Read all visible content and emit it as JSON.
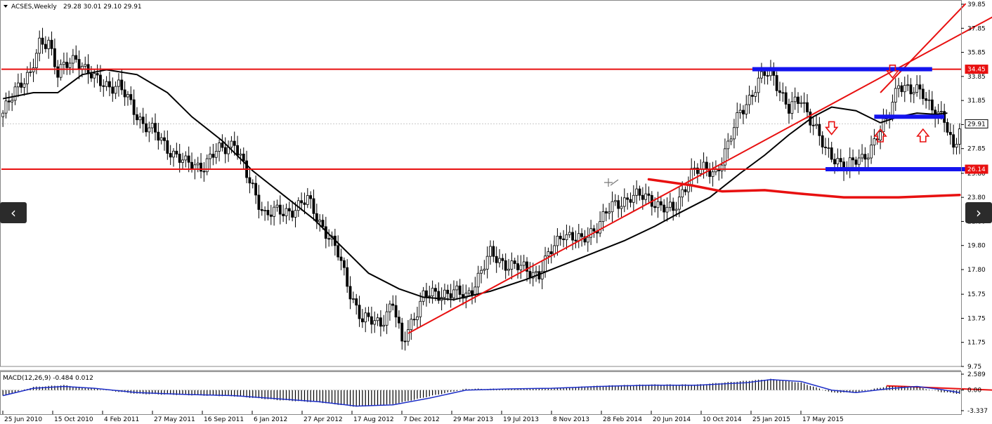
{
  "header": {
    "symbol": "ACSES,Weekly",
    "ohlc": "29.28 30.01 29.10 29.91",
    "arrow_icon": "triangle-down-icon"
  },
  "macd_header": "MACD(12,26,9) -0.484 0.012",
  "colors": {
    "candle": "#000000",
    "ma": "#000000",
    "red_line": "#e81010",
    "blue_zone": "#1414ee",
    "price_label_bg": "#e81010",
    "price_label_text": "#ffffff",
    "current_label_bg": "#ffffff",
    "grid": "#c9c9c9",
    "macd_signal": "#1e2fc8"
  },
  "nav": {
    "prev_icon": "chevron-left-icon",
    "next_icon": "chevron-right-icon",
    "prev": "‹",
    "next": "›"
  },
  "chart_data": {
    "type": "candlestick",
    "symbol": "ACSES",
    "timeframe": "Weekly",
    "main_ylim": [
      9.75,
      39.85
    ],
    "y_ticks": [
      "39.85",
      "37.85",
      "35.85",
      "33.85",
      "31.85",
      "29.85",
      "27.85",
      "25.80",
      "23.80",
      "21.80",
      "19.80",
      "17.80",
      "15.75",
      "13.75",
      "11.75",
      "9.75"
    ],
    "x_ticks": [
      "25 Jun 2010",
      "15 Oct 2010",
      "4 Feb 2011",
      "27 May 2011",
      "16 Sep 2011",
      "6 Jan 2012",
      "27 Apr 2012",
      "17 Aug 2012",
      "7 Dec 2012",
      "29 Mar 2013",
      "19 Jul 2013",
      "8 Nov 2013",
      "28 Feb 2014",
      "20 Jun 2014",
      "10 Oct 2014",
      "25 Jan 2015",
      "17 May 2015"
    ],
    "price_labels": [
      {
        "value": 34.45,
        "label": "34.45",
        "kind": "level"
      },
      {
        "value": 29.91,
        "label": "29.91",
        "kind": "current"
      },
      {
        "value": 26.14,
        "label": "26.14",
        "kind": "level"
      }
    ],
    "close_path": [
      [
        0,
        30.5
      ],
      [
        4,
        33.0
      ],
      [
        6,
        33.5
      ],
      [
        9,
        33.8
      ],
      [
        12,
        36.5
      ],
      [
        15,
        37.0
      ],
      [
        18,
        34.0
      ],
      [
        24,
        35.5
      ],
      [
        30,
        33.5
      ],
      [
        38,
        33.0
      ],
      [
        46,
        30.0
      ],
      [
        54,
        28.0
      ],
      [
        60,
        26.5
      ],
      [
        66,
        26.5
      ],
      [
        70,
        27.5
      ],
      [
        76,
        28.5
      ],
      [
        80,
        25.5
      ],
      [
        86,
        22.5
      ],
      [
        92,
        22.5
      ],
      [
        100,
        23.5
      ],
      [
        106,
        21.0
      ],
      [
        110,
        19.0
      ],
      [
        114,
        16.0
      ],
      [
        118,
        13.5
      ],
      [
        124,
        13.5
      ],
      [
        128,
        15.0
      ],
      [
        131,
        11.5
      ],
      [
        133,
        13.0
      ],
      [
        138,
        15.5
      ],
      [
        146,
        16.0
      ],
      [
        152,
        15.5
      ],
      [
        160,
        19.0
      ],
      [
        168,
        18.0
      ],
      [
        176,
        17.5
      ],
      [
        184,
        21.0
      ],
      [
        190,
        20.0
      ],
      [
        198,
        22.5
      ],
      [
        206,
        24.0
      ],
      [
        214,
        23.5
      ],
      [
        220,
        22.5
      ],
      [
        226,
        26.0
      ],
      [
        234,
        26.0
      ],
      [
        238,
        28.0
      ],
      [
        242,
        31.0
      ],
      [
        246,
        32.5
      ],
      [
        250,
        34.0
      ],
      [
        253,
        34.0
      ],
      [
        258,
        31.0
      ],
      [
        262,
        32.0
      ],
      [
        266,
        30.0
      ],
      [
        270,
        27.5
      ],
      [
        274,
        27.0
      ],
      [
        277,
        26.3
      ],
      [
        282,
        27.0
      ],
      [
        286,
        28.5
      ],
      [
        290,
        30.0
      ],
      [
        294,
        33.5
      ],
      [
        298,
        32.5
      ],
      [
        302,
        32.5
      ],
      [
        306,
        31.0
      ],
      [
        309,
        30.0
      ],
      [
        312,
        27.8
      ],
      [
        314,
        29.91
      ]
    ],
    "moving_average_path": [
      [
        0,
        32.0
      ],
      [
        10,
        32.5
      ],
      [
        18,
        32.5
      ],
      [
        26,
        34.0
      ],
      [
        34,
        34.4
      ],
      [
        44,
        34.0
      ],
      [
        54,
        32.5
      ],
      [
        62,
        30.5
      ],
      [
        72,
        28.5
      ],
      [
        82,
        26.0
      ],
      [
        92,
        24.0
      ],
      [
        102,
        22.0
      ],
      [
        112,
        19.5
      ],
      [
        120,
        17.5
      ],
      [
        130,
        16.2
      ],
      [
        138,
        15.5
      ],
      [
        148,
        15.3
      ],
      [
        160,
        16.0
      ],
      [
        172,
        17.0
      ],
      [
        182,
        18.0
      ],
      [
        192,
        19.0
      ],
      [
        204,
        20.2
      ],
      [
        214,
        21.4
      ],
      [
        222,
        22.5
      ],
      [
        232,
        23.8
      ],
      [
        242,
        25.8
      ],
      [
        250,
        27.3
      ],
      [
        258,
        29.0
      ],
      [
        266,
        30.5
      ],
      [
        272,
        31.3
      ],
      [
        280,
        31.0
      ],
      [
        288,
        30.0
      ],
      [
        294,
        30.5
      ],
      [
        300,
        30.8
      ],
      [
        306,
        30.7
      ],
      [
        310,
        30.8
      ]
    ],
    "horizontal_levels": [
      34.45,
      26.14
    ],
    "trend_lines": [
      {
        "points": [
          [
            133,
            12.5
          ],
          [
            330,
            39.5
          ]
        ]
      },
      {
        "points": [
          [
            288,
            32.5
          ],
          [
            316,
            39.9
          ]
        ]
      }
    ],
    "curved_line": [
      [
        212,
        25.3
      ],
      [
        226,
        24.8
      ],
      [
        236,
        24.3
      ],
      [
        250,
        24.4
      ],
      [
        262,
        24.1
      ],
      [
        276,
        23.8
      ],
      [
        294,
        23.8
      ],
      [
        314,
        24.0
      ]
    ],
    "blue_zones": [
      {
        "from": 246,
        "to": 305,
        "value": 34.45
      },
      {
        "from": 286,
        "to": 309,
        "value": 30.5
      },
      {
        "from": 270,
        "to": 318,
        "value": 26.14
      }
    ],
    "arrow_marks": [
      {
        "x": 272,
        "y": 29.5,
        "direction": "down"
      },
      {
        "x": 288,
        "y": 29.0,
        "direction": "up"
      },
      {
        "x": 292,
        "y": 34.2,
        "direction": "down"
      },
      {
        "x": 302,
        "y": 29.0,
        "direction": "up"
      }
    ],
    "macd": {
      "ylim": [
        -3.337,
        2.589
      ],
      "y_ticks": [
        "2.589",
        "0.00",
        "-3.337"
      ],
      "histogram_path": [
        [
          0,
          -0.9
        ],
        [
          10,
          0.5
        ],
        [
          20,
          0.8
        ],
        [
          30,
          0.2
        ],
        [
          44,
          -0.6
        ],
        [
          60,
          -0.8
        ],
        [
          76,
          -1.0
        ],
        [
          90,
          -1.6
        ],
        [
          104,
          -2.0
        ],
        [
          116,
          -2.7
        ],
        [
          128,
          -2.3
        ],
        [
          140,
          -1.0
        ],
        [
          152,
          0.2
        ],
        [
          166,
          0.2
        ],
        [
          180,
          0.3
        ],
        [
          196,
          0.7
        ],
        [
          212,
          0.9
        ],
        [
          228,
          0.9
        ],
        [
          244,
          1.5
        ],
        [
          252,
          1.8
        ],
        [
          262,
          1.2
        ],
        [
          272,
          -0.4
        ],
        [
          280,
          -0.4
        ],
        [
          290,
          0.6
        ],
        [
          300,
          0.5
        ],
        [
          308,
          -0.3
        ],
        [
          314,
          -0.6
        ]
      ],
      "signal_path": [
        [
          0,
          -0.9
        ],
        [
          10,
          0.3
        ],
        [
          20,
          0.6
        ],
        [
          30,
          0.3
        ],
        [
          44,
          -0.4
        ],
        [
          60,
          -0.7
        ],
        [
          76,
          -0.9
        ],
        [
          90,
          -1.4
        ],
        [
          104,
          -1.9
        ],
        [
          116,
          -2.6
        ],
        [
          128,
          -2.4
        ],
        [
          140,
          -1.3
        ],
        [
          152,
          0.0
        ],
        [
          166,
          0.2
        ],
        [
          180,
          0.3
        ],
        [
          196,
          0.6
        ],
        [
          212,
          0.8
        ],
        [
          228,
          0.8
        ],
        [
          244,
          1.2
        ],
        [
          252,
          1.7
        ],
        [
          262,
          1.4
        ],
        [
          272,
          0.0
        ],
        [
          280,
          -0.4
        ],
        [
          290,
          0.2
        ],
        [
          300,
          0.6
        ],
        [
          308,
          0.1
        ],
        [
          314,
          -0.4
        ]
      ],
      "trend_line": [
        [
          290,
          0.7
        ],
        [
          370,
          -0.9
        ]
      ]
    }
  }
}
